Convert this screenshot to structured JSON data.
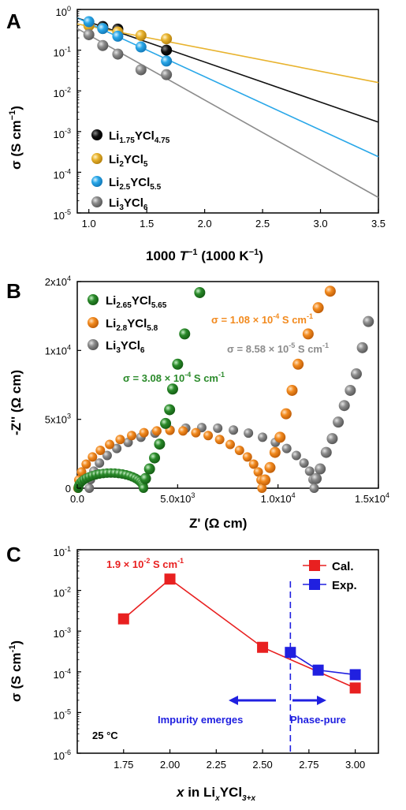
{
  "chart_data": [
    {
      "panel": "A",
      "type": "scatter",
      "xlabel_main": "1000",
      "xlabel_var": "T",
      "xlabel_sup": "−1",
      "xlabel_unit": "(1000 K",
      "xlabel_unit_sup": "−1",
      "xlabel_close": ")",
      "ylabel": "σ (S cm",
      "ylabel_sup": "−1",
      "ylabel_close": ")",
      "xlim": [
        0.9,
        3.5
      ],
      "ylim_log10": [
        -5,
        0
      ],
      "y_scale": "log",
      "xticks": [
        "1.0",
        "1.5",
        "2.0",
        "2.5",
        "3.0",
        "3.5"
      ],
      "xtick_values": [
        1.0,
        1.5,
        2.0,
        2.5,
        3.0,
        3.5
      ],
      "yticks": [
        {
          "base": "10",
          "exp": "0"
        },
        {
          "base": "10",
          "exp": "-1"
        },
        {
          "base": "10",
          "exp": "-2"
        },
        {
          "base": "10",
          "exp": "-3"
        },
        {
          "base": "10",
          "exp": "-4"
        },
        {
          "base": "10",
          "exp": "-5"
        }
      ],
      "ytick_values_log10": [
        0,
        -1,
        -2,
        -3,
        -4,
        -5
      ],
      "legend_position": "bottom-left",
      "series": [
        {
          "name": {
            "a": "Li",
            "a_sub": "1.75",
            "b": "YCl",
            "b_sub": "4.75"
          },
          "color": "#111111",
          "x": [
            1.12,
            1.25,
            1.67
          ],
          "y": [
            0.38,
            0.33,
            0.1
          ],
          "fit_x": [
            0.9,
            3.5
          ],
          "fit_y": [
            0.62,
            0.0017
          ]
        },
        {
          "name": {
            "a": "Li",
            "a_sub": "2",
            "b": "YCl",
            "b_sub": "5"
          },
          "color": "#e8b32e",
          "x": [
            1.0,
            1.12,
            1.25,
            1.45,
            1.67
          ],
          "y": [
            0.4,
            0.34,
            0.28,
            0.23,
            0.19
          ],
          "fit_x": [
            0.9,
            3.5
          ],
          "fit_y": [
            0.44,
            0.016
          ]
        },
        {
          "name": {
            "a": "Li",
            "a_sub": "2.5",
            "b": "YCl",
            "b_sub": "5.5"
          },
          "color": "#29a7e8",
          "x": [
            1.0,
            1.12,
            1.25,
            1.45,
            1.67
          ],
          "y": [
            0.5,
            0.34,
            0.22,
            0.12,
            0.054
          ],
          "fit_x": [
            0.9,
            3.5
          ],
          "fit_y": [
            0.62,
            0.00024
          ]
        },
        {
          "name": {
            "a": "Li",
            "a_sub": "3",
            "b": "YCl",
            "b_sub": "6"
          },
          "color": "#8c8c8c",
          "x": [
            1.0,
            1.12,
            1.25,
            1.45,
            1.67
          ],
          "y": [
            0.24,
            0.13,
            0.08,
            0.033,
            0.025
          ],
          "fit_x": [
            0.9,
            3.5
          ],
          "fit_y": [
            0.34,
            2.4e-05
          ]
        }
      ]
    },
    {
      "panel": "B",
      "type": "scatter",
      "xlabel": "Z' (Ω cm)",
      "ylabel": "-Z'' (Ω cm)",
      "xlim": [
        0,
        15000
      ],
      "ylim": [
        0,
        20000
      ],
      "xticks": [
        {
          "text": "0.0"
        },
        {
          "text": "5.0x10",
          "exp": "3"
        },
        {
          "text": "1.0x10",
          "exp": "4"
        },
        {
          "text": "1.5x10",
          "exp": "4"
        }
      ],
      "xtick_values": [
        0,
        5000,
        10000,
        15000
      ],
      "yticks": [
        {
          "text": "0"
        },
        {
          "text": "5x10",
          "exp": "3"
        },
        {
          "text": "1x10",
          "exp": "4"
        },
        {
          "text": "2x10",
          "exp": "4"
        }
      ],
      "ytick_values": [
        0,
        5000,
        10000,
        20000
      ],
      "ytick_positions": [
        0,
        5000,
        10000,
        15000
      ],
      "legend_position": "top-left",
      "series": [
        {
          "name": {
            "a": "Li",
            "a_sub": "2.65",
            "b": "YCl",
            "b_sub": "5.65"
          },
          "color": "#2a8a2a",
          "arc": {
            "x0": 50,
            "x1": 3300,
            "peak": 1100
          },
          "tail": [
            [
              3400,
              700
            ],
            [
              3600,
              1400
            ],
            [
              3850,
              2200
            ],
            [
              4100,
              3200
            ],
            [
              4400,
              4700
            ],
            [
              4600,
              5700
            ],
            [
              4750,
              7200
            ],
            [
              5000,
              9000
            ],
            [
              5350,
              11200
            ],
            [
              6100,
              14200
            ]
          ]
        },
        {
          "name": {
            "a": "Li",
            "a_sub": "2.8",
            "b": "YCl",
            "b_sub": "5.8"
          },
          "color": "#f28a1e",
          "arc": {
            "x0": 30,
            "x1": 9200,
            "peak": 4200
          },
          "tail": [
            [
              9350,
              600
            ],
            [
              9600,
              1500
            ],
            [
              9850,
              2600
            ],
            [
              10100,
              3700
            ],
            [
              10400,
              5400
            ],
            [
              10700,
              7100
            ],
            [
              11000,
              9000
            ],
            [
              11500,
              11200
            ],
            [
              12000,
              13100
            ],
            [
              12600,
              14300
            ]
          ]
        },
        {
          "name": {
            "a": "Li",
            "a_sub": "3",
            "b": "YCl",
            "b_sub": "6"
          },
          "color": "#8c8c8c",
          "arc": {
            "x0": 600,
            "x1": 11800,
            "peak": 4400
          },
          "tail": [
            [
              11900,
              700
            ],
            [
              12100,
              1400
            ],
            [
              12400,
              2600
            ],
            [
              12700,
              3600
            ],
            [
              13000,
              4800
            ],
            [
              13300,
              6000
            ],
            [
              13600,
              7100
            ],
            [
              13900,
              8300
            ],
            [
              14200,
              10200
            ],
            [
              14500,
              12100
            ]
          ]
        }
      ],
      "annotations": [
        {
          "prefix": "σ = 1.08 × 10",
          "exp": "-4",
          "suffix": " S cm",
          "exp2": "-1",
          "color": "#f28a1e"
        },
        {
          "prefix": "σ = 8.58 × 10",
          "exp": "-5",
          "suffix": " S cm",
          "exp2": "-1",
          "color": "#8c8c8c"
        },
        {
          "prefix": "σ = 3.08 × 10",
          "exp": "-4",
          "suffix": " S cm",
          "exp2": "-1",
          "color": "#2a8a2a"
        }
      ]
    },
    {
      "panel": "C",
      "type": "line",
      "xlabel": {
        "var": "x",
        "mid": " in Li",
        "sub1": "x",
        "b": "YCl",
        "sub2": "3+x"
      },
      "ylabel": "σ (S cm",
      "ylabel_sup": "-1",
      "ylabel_close": ")",
      "xlim": [
        1.5,
        3.125
      ],
      "ylim_log10": [
        -6,
        -1
      ],
      "y_scale": "log",
      "xticks": [
        "1.75",
        "2.00",
        "2.25",
        "2.50",
        "2.75",
        "3.00"
      ],
      "xtick_values": [
        1.75,
        2.0,
        2.25,
        2.5,
        2.75,
        3.0
      ],
      "yticks": [
        {
          "base": "10",
          "exp": "-1"
        },
        {
          "base": "10",
          "exp": "-2"
        },
        {
          "base": "10",
          "exp": "-3"
        },
        {
          "base": "10",
          "exp": "-4"
        },
        {
          "base": "10",
          "exp": "-5"
        },
        {
          "base": "10",
          "exp": "-6"
        }
      ],
      "ytick_values_log10": [
        -1,
        -2,
        -3,
        -4,
        -5,
        -6
      ],
      "legend_position": "top-right",
      "series": [
        {
          "name": "Cal.",
          "color": "#e82020",
          "x": [
            1.75,
            2.0,
            2.5,
            3.0
          ],
          "y": [
            0.002,
            0.019,
            0.0004,
            4e-05
          ]
        },
        {
          "name": "Exp.",
          "color": "#2020e0",
          "x": [
            2.65,
            2.8,
            3.0
          ],
          "y": [
            0.0003,
            0.00011,
            8.5e-05
          ]
        }
      ],
      "vline_x": 2.65,
      "annotations": {
        "peak": {
          "prefix": "1.9 × 10",
          "exp": "-2",
          "suffix": " S cm",
          "exp2": "-1",
          "color": "#e82020"
        },
        "left_region": "Impurity emerges",
        "right_region": "Phase-pure",
        "temperature": "25 °C"
      }
    }
  ],
  "panel_labels": [
    "A",
    "B",
    "C"
  ]
}
